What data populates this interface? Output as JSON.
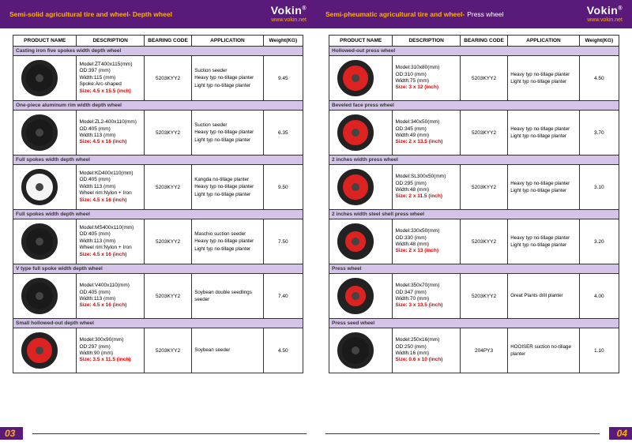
{
  "brand": {
    "name": "Vokin",
    "url": "www.vokin.net"
  },
  "pages": [
    {
      "num": "03",
      "title": "Semi-solid agricultural tire and wheel- Depth wheel",
      "columns": [
        "PRODUCT NAME",
        "DESCRIPTION",
        "BEARING CODE",
        "APPLICATION",
        "Weight(KG)"
      ],
      "groups": [
        {
          "label": "Casting iron five spokes width depth wheel",
          "wheel": "black",
          "desc": [
            "Model:ZT400x115(mm)",
            "OD:397 (mm)",
            "Width:115 (mm)",
            "Spoke:Arc-shaped"
          ],
          "size": "Size: 4.5 x 15.5 (inch)",
          "bearing": "5203KYY2",
          "app": [
            "Suction seeder",
            "Heavy typ no-tillage planter",
            "Light typ no-tillage planter"
          ],
          "weight": "9.45"
        },
        {
          "label": "One-piece aluminum rim width depth wheel",
          "wheel": "black",
          "desc": [
            "Model:ZL2-400x110(mm)",
            "OD:405 (mm)",
            "Width:113 (mm)"
          ],
          "size": "Size: 4.5 x 16 (inch)",
          "bearing": "5203KYY2",
          "app": [
            "Suction seeder",
            "Heavy typ no-tillage planter",
            "Light typ no-tillage planter"
          ],
          "weight": "6.35"
        },
        {
          "label": "Full spokes width depth wheel",
          "wheel": "white",
          "desc": [
            "Model:KD400x110(mm)",
            "OD:405 (mm)",
            "Width:113 (mm)",
            "Wheel rim:Nylon + Iron"
          ],
          "size": "Size: 4.5 x 16 (inch)",
          "bearing": "5203KYY2",
          "app": [
            "Kangda no-tillage planter",
            "Heavy typ no-tillage planter",
            "Light typ no-tillage planter"
          ],
          "weight": "9.50"
        },
        {
          "label": "Full spokes width depth wheel",
          "wheel": "black",
          "desc": [
            "Model:MS400x110(mm)",
            "OD:405 (mm)",
            "Width:113 (mm)",
            "Wheel rim:Nylon + Iron"
          ],
          "size": "Size: 4.5 x 16 (inch)",
          "bearing": "5203KYY2",
          "app": [
            "Maschio suction seeder",
            "Heavy typ no-tillage planter",
            "Light typ no-tillage planter"
          ],
          "weight": "7.50"
        },
        {
          "label": "V type full spoke width depth wheel",
          "wheel": "black",
          "desc": [
            "Model:V400x110(mm)",
            "OD:405 (mm)",
            "Width:113 (mm)"
          ],
          "size": "Size: 4.5 x 16 (inch)",
          "bearing": "5203KYY2",
          "app": [
            "Soybean double seedlings seeder"
          ],
          "weight": "7.40"
        },
        {
          "label": "Small hollowed-out depth wheel",
          "wheel": "red",
          "desc": [
            "Model:300x90(mm)",
            "OD:297 (mm)",
            "Width:90 (mm)"
          ],
          "size": "Size: 3.5 x 11.5 (inch)",
          "bearing": "5203KYY2",
          "app": [
            "Soybean seeder"
          ],
          "weight": "4.50"
        }
      ]
    },
    {
      "num": "04",
      "title": "Semi-pheumatic agricultural tire and wheel-",
      "titleSuffix": "Press wheel",
      "columns": [
        "PRODUCT NAME",
        "DESCRIPTION",
        "BEARING CODE",
        "APPLICATION",
        "Weight(KG)"
      ],
      "groups": [
        {
          "label": "Hollowed-out press wheel",
          "wheel": "red",
          "desc": [
            "Model:310x80(mm)",
            "OD:310 (mm)",
            "Width:75 (mm)"
          ],
          "size": "Size: 3 x 12 (inch)",
          "bearing": "5203KYY2",
          "app": [
            "Heavy typ no-tillage planter",
            "Light typ no-tillage planter"
          ],
          "weight": "4.50"
        },
        {
          "label": "Beveled face press wheel",
          "wheel": "red",
          "desc": [
            "Model:340x50(mm)",
            "OD:345 (mm)",
            "Width:49 (mm)"
          ],
          "size": "Size: 2 x 13.5 (inch)",
          "bearing": "5203KYY2",
          "app": [
            "Heavy typ no-tillage planter",
            "Light typ no-tillage planter"
          ],
          "weight": "3.70"
        },
        {
          "label": "2 inches width press wheel",
          "wheel": "red",
          "desc": [
            "Model:SL300x50(mm)",
            "OD:295 (mm)",
            "Width:48 (mm)"
          ],
          "size": "Size: 2 x 11.5 (inch)",
          "bearing": "5203KYY2",
          "app": [
            "Heavy typ no-tillage planter",
            "Light typ no-tillage planter"
          ],
          "weight": "3.10"
        },
        {
          "label": "2 inches width steel shell press wheel",
          "wheel": "redthick",
          "desc": [
            "Model:330x50(mm)",
            "OD:330 (mm)",
            "Width:48 (mm)"
          ],
          "size": "Size: 2 x 13 (inch)",
          "bearing": "5203KYY2",
          "app": [
            "Heavy typ no-tillage planter",
            "Light typ no-tillage planter"
          ],
          "weight": "3.20"
        },
        {
          "label": "Press wheel",
          "wheel": "redthick",
          "desc": [
            "Model:350x70(mm)",
            "OD:347 (mm)",
            "Width:70 (mm)"
          ],
          "size": "Size: 3 x 13.5 (inch)",
          "bearing": "5203KYY2",
          "app": [
            "Great Plants drill planter"
          ],
          "weight": "4.00"
        },
        {
          "label": "Press seed wheel",
          "wheel": "black",
          "desc": [
            "Model:250x16(mm)",
            "OD:250 (mm)",
            "Width:16 (mm)"
          ],
          "size": "Size: 0.6 x 10 (inch)",
          "bearing": "204PY3",
          "app": [
            "HOOISER suction no-tillage planter"
          ],
          "weight": "1.10"
        }
      ]
    }
  ]
}
